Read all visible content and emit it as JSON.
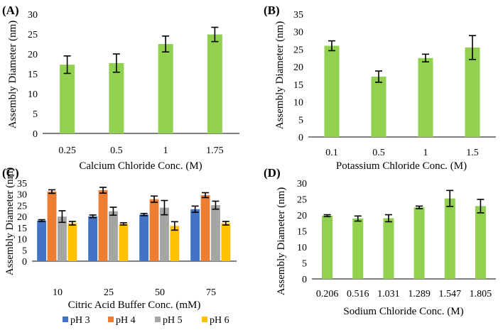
{
  "figure_panels": [
    "(A)",
    "(B)",
    "(C)",
    "(D)"
  ],
  "colors": {
    "green": "#92d050",
    "ph3": "#4472c4",
    "ph4": "#ed7d31",
    "ph5": "#a5a5a5",
    "ph6": "#ffc000",
    "axis": "#000000"
  },
  "chart_data": [
    {
      "panel": "(A)",
      "type": "bar",
      "xlabel": "Calcium Chloride Conc. (M)",
      "ylabel": "Assembly Diameter (nm)",
      "ylim": [
        0,
        30
      ],
      "yticks": [
        0,
        5,
        10,
        15,
        20,
        25,
        30
      ],
      "categories": [
        "0.25",
        "0.5",
        "1",
        "1.75"
      ],
      "series": [
        {
          "name": "",
          "color": "#92d050",
          "values": [
            17.3,
            17.7,
            22.5,
            24.9
          ],
          "errors": [
            2.2,
            2.3,
            2.0,
            1.8
          ]
        }
      ]
    },
    {
      "panel": "(B)",
      "type": "bar",
      "xlabel": "Potassium Chloride Conc. (M)",
      "ylabel": "Assembly Diameter (nm)",
      "ylim": [
        0,
        35
      ],
      "yticks": [
        0,
        5,
        10,
        15,
        20,
        25,
        30,
        35
      ],
      "categories": [
        "0.1",
        "0.5",
        "1",
        "1.5"
      ],
      "series": [
        {
          "name": "",
          "color": "#92d050",
          "values": [
            26.0,
            17.2,
            22.5,
            25.5
          ],
          "errors": [
            1.4,
            1.6,
            1.1,
            3.4
          ]
        }
      ]
    },
    {
      "panel": "(C)",
      "type": "bar",
      "xlabel": "Citric Acid Buffer Conc. (mM)",
      "ylabel": "Assembly Diameter (nm)",
      "ylim": [
        0,
        35
      ],
      "yticks": [
        0,
        5,
        10,
        15,
        20,
        25,
        30,
        35
      ],
      "categories": [
        "10",
        "25",
        "50",
        "75"
      ],
      "series": [
        {
          "name": "pH 3",
          "color": "#4472c4",
          "values": [
            18.2,
            20.1,
            20.9,
            23.3
          ],
          "errors": [
            0.4,
            0.6,
            0.5,
            1.4
          ]
        },
        {
          "name": "pH 4",
          "color": "#ed7d31",
          "values": [
            31.2,
            31.8,
            27.8,
            29.6
          ],
          "errors": [
            0.8,
            1.3,
            1.4,
            1.1
          ]
        },
        {
          "name": "pH 5",
          "color": "#a5a5a5",
          "values": [
            20.0,
            22.4,
            24.0,
            25.1
          ],
          "errors": [
            2.6,
            1.8,
            3.2,
            1.8
          ]
        },
        {
          "name": "pH 6",
          "color": "#ffc000",
          "values": [
            17.0,
            16.7,
            15.8,
            17.0
          ],
          "errors": [
            0.8,
            0.5,
            1.9,
            0.8
          ]
        }
      ],
      "legend": "bottom"
    },
    {
      "panel": "(D)",
      "type": "bar",
      "xlabel": "Sodium Chloride Conc. (M)",
      "ylabel": "Assembly Diameter (nm)",
      "ylim": [
        0,
        30
      ],
      "yticks": [
        0,
        5,
        10,
        15,
        20,
        25,
        30
      ],
      "categories": [
        "0.206",
        "0.516",
        "1.031",
        "1.289",
        "1.547",
        "1.805"
      ],
      "series": [
        {
          "name": "",
          "color": "#92d050",
          "values": [
            19.8,
            18.9,
            19.0,
            22.4,
            25.2,
            22.8
          ],
          "errors": [
            0.3,
            0.8,
            1.1,
            0.4,
            2.5,
            2.1
          ]
        }
      ]
    }
  ]
}
